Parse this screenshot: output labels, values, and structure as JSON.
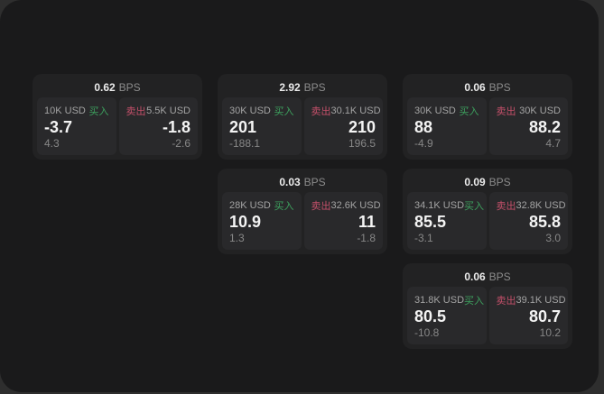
{
  "labels": {
    "bps": "BPS",
    "buy": "买入",
    "sell": "卖出"
  },
  "colors": {
    "buy_green": "#3da05e",
    "sell_red": "#c4506a",
    "panel_bg": "#1a1a1b",
    "card_bg": "#222223",
    "subpanel_bg": "#29292b"
  },
  "cards": [
    {
      "bps": "0.62",
      "buy": {
        "size": "10K USD",
        "value": "-3.7",
        "sub": "4.3"
      },
      "sell": {
        "size": "5.5K USD",
        "value": "-1.8",
        "sub": "-2.6"
      }
    },
    {
      "bps": "2.92",
      "buy": {
        "size": "30K USD",
        "value": "201",
        "sub": "-188.1"
      },
      "sell": {
        "size": "30.1K USD",
        "value": "210",
        "sub": "196.5"
      }
    },
    {
      "bps": "0.03",
      "buy": {
        "size": "28K USD",
        "value": "10.9",
        "sub": "1.3"
      },
      "sell": {
        "size": "32.6K USD",
        "value": "11",
        "sub": "-1.8"
      }
    },
    {
      "bps": "0.06",
      "buy": {
        "size": "30K USD",
        "value": "88",
        "sub": "-4.9"
      },
      "sell": {
        "size": "30K USD",
        "value": "88.2",
        "sub": "4.7"
      }
    },
    {
      "bps": "0.09",
      "buy": {
        "size": "34.1K USD",
        "value": "85.5",
        "sub": "-3.1"
      },
      "sell": {
        "size": "32.8K USD",
        "value": "85.8",
        "sub": "3.0"
      }
    },
    {
      "bps": "0.06",
      "buy": {
        "size": "31.8K USD",
        "value": "80.5",
        "sub": "-10.8"
      },
      "sell": {
        "size": "39.1K USD",
        "value": "80.7",
        "sub": "10.2"
      }
    }
  ]
}
